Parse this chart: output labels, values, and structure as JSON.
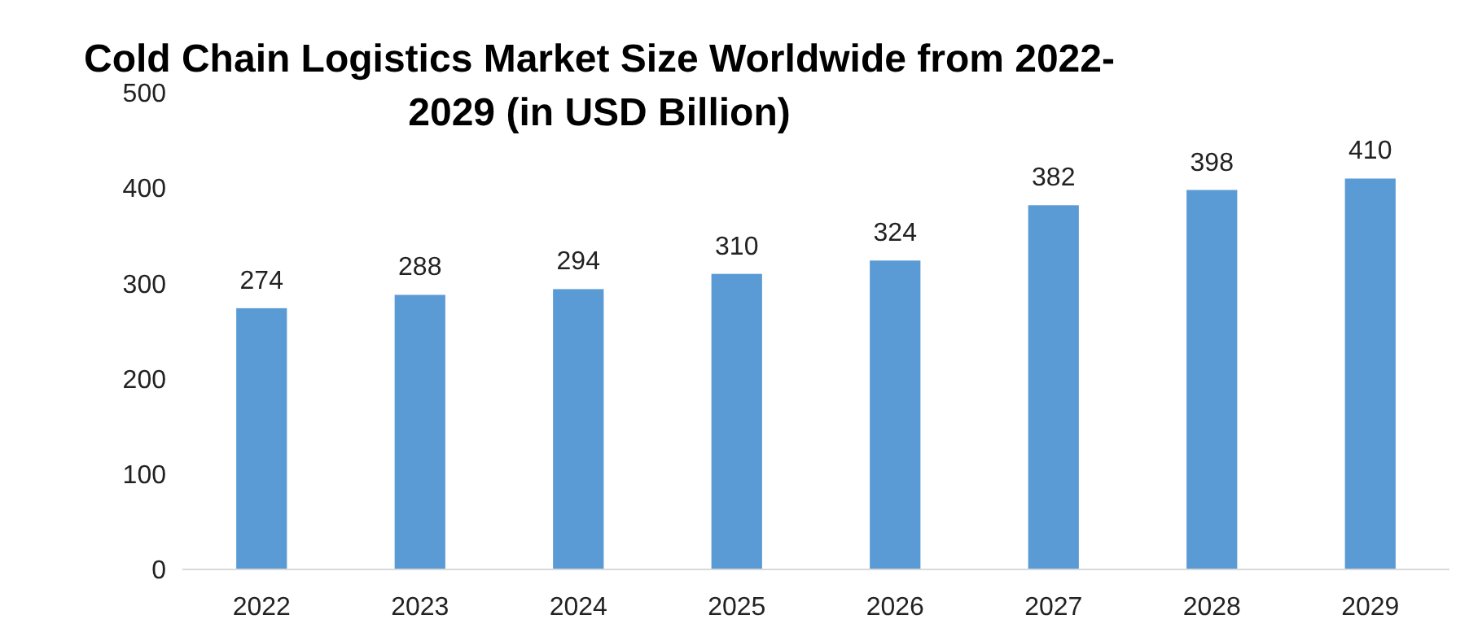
{
  "chart_data": {
    "type": "bar",
    "title": "Cold Chain Logistics Market Size Worldwide from 2022-2029 (in USD Billion)",
    "categories": [
      "2022",
      "2023",
      "2024",
      "2025",
      "2026",
      "2027",
      "2028",
      "2029"
    ],
    "values": [
      274,
      288,
      294,
      310,
      324,
      382,
      398,
      410
    ],
    "color": "#5b9bd5",
    "ylim": [
      0,
      500
    ],
    "yticks": [
      0,
      100,
      200,
      300,
      400,
      500
    ],
    "data_labels": true
  }
}
